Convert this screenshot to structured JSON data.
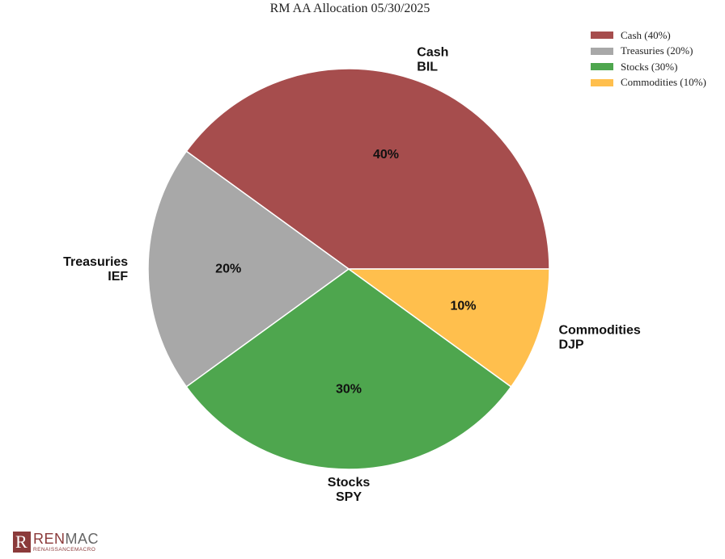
{
  "chart_data": {
    "type": "pie",
    "title": "RM AA Allocation 05/30/2025",
    "start_angle_deg": 0,
    "direction": "counterclockwise",
    "legend_position": "top-right",
    "slices": [
      {
        "label_line1": "Cash",
        "label_line2": "BIL",
        "value": 40,
        "pct_label": "40%",
        "legend": "Cash (40%)",
        "color": "#a64d4d"
      },
      {
        "label_line1": "Treasuries",
        "label_line2": "IEF",
        "value": 20,
        "pct_label": "20%",
        "legend": "Treasuries (20%)",
        "color": "#a8a8a8"
      },
      {
        "label_line1": "Stocks",
        "label_line2": "SPY",
        "value": 30,
        "pct_label": "30%",
        "legend": "Stocks (30%)",
        "color": "#4ea64e"
      },
      {
        "label_line1": "Commodities",
        "label_line2": "DJP",
        "value": 10,
        "pct_label": "10%",
        "legend": "Commodities (10%)",
        "color": "#ffbf4d"
      }
    ]
  },
  "logo": {
    "word_ren": "REN",
    "word_mac": "MAC",
    "sub": "RENAISSANCEMACRO",
    "mark": "R"
  }
}
